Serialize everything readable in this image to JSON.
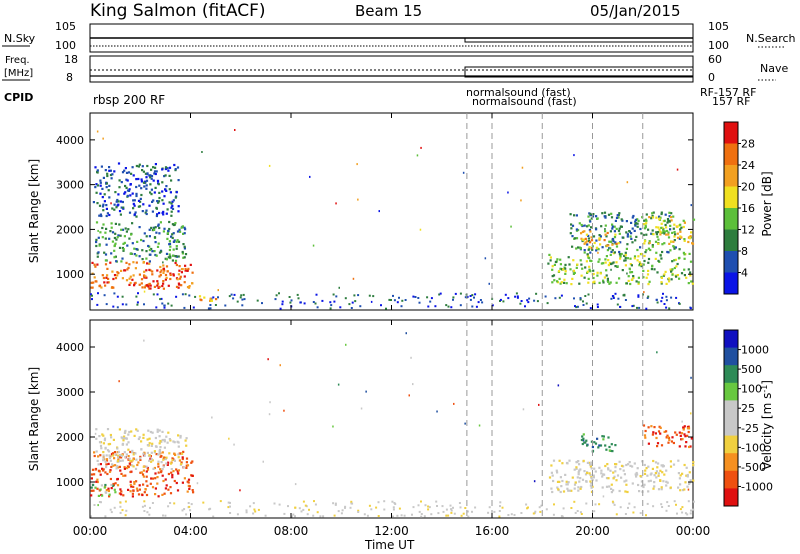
{
  "header": {
    "title": "King Salmon (fitACF)",
    "beam": "Beam 15",
    "date": "05/Jan/2015"
  },
  "nsky_panel": {
    "left_label": "N.Sky",
    "right_label": "N.Search",
    "left_ticks": [
      "10^5",
      "10^0"
    ],
    "right_ticks": [
      "10^5",
      "10^0"
    ]
  },
  "freq_panel": {
    "left_label_line1": "Freq.",
    "left_label_line2": "[MHz]",
    "right_label": "Nave",
    "left_ticks": [
      "18",
      "8"
    ],
    "right_ticks": [
      "60",
      "0"
    ]
  },
  "cpid": {
    "label": "CPID",
    "first": "rbsp 200 RF",
    "overlap_top": "normalsound (fast)",
    "overlap_bottom": "normalsound (fast)",
    "right_top": "RF-157 RF",
    "right_bottom": "157 RF"
  },
  "colors": {
    "power": [
      "#0a14e6",
      "#1f4fb0",
      "#2e7d3e",
      "#5cbf3a",
      "#f0e020",
      "#f2a020",
      "#ef7010",
      "#e01010"
    ],
    "velocity": [
      "#e01010",
      "#ef5010",
      "#f59020",
      "#f0d040",
      "#c8c8c8",
      "#c8c8c8",
      "#68c840",
      "#2e8b57",
      "#2050a0",
      "#1010c0"
    ]
  },
  "chart_data": [
    {
      "type": "heatmap",
      "name": "power_panel",
      "xlabel": "",
      "ylabel": "Slant Range [km]",
      "xlim": [
        "00:00",
        "24:00"
      ],
      "ylim": [
        200,
        4600
      ],
      "y_ticks": [
        1000,
        2000,
        3000,
        4000
      ],
      "colorbar": {
        "label": "Power [dB]",
        "ticks": [
          "4",
          "8",
          "12",
          "16",
          "20",
          "24",
          "28"
        ]
      },
      "regions": [
        {
          "t0": 0.0,
          "t1": 4.1,
          "r0": 700,
          "r1": 1300,
          "level": 6
        },
        {
          "t0": 0.2,
          "t1": 3.8,
          "r0": 1300,
          "r1": 2200,
          "level": 2
        },
        {
          "t0": 0.1,
          "t1": 3.5,
          "r0": 2300,
          "r1": 3500,
          "level": 1
        },
        {
          "t0": 1.5,
          "t1": 3.0,
          "r0": 700,
          "r1": 900,
          "level": 7
        },
        {
          "t0": 4.3,
          "t1": 5.2,
          "r0": 350,
          "r1": 550,
          "level": 5
        },
        {
          "t0": 18.2,
          "t1": 24.0,
          "r0": 800,
          "r1": 1500,
          "level": 3
        },
        {
          "t0": 19.0,
          "t1": 23.5,
          "r0": 1500,
          "r1": 2400,
          "level": 2
        },
        {
          "t0": 22.0,
          "t1": 24.0,
          "r0": 1700,
          "r1": 2300,
          "level": 4
        },
        {
          "t0": 19.5,
          "t1": 21.0,
          "r0": 1600,
          "r1": 2000,
          "level": 5
        }
      ],
      "dashed_lines_hours": [
        15.0,
        16.0,
        18.0,
        20.0,
        22.0
      ]
    },
    {
      "type": "heatmap",
      "name": "velocity_panel",
      "xlabel": "Time UT",
      "ylabel": "Slant Range [km]",
      "xlim": [
        "00:00",
        "24:00"
      ],
      "ylim": [
        200,
        4600
      ],
      "y_ticks": [
        1000,
        2000,
        3000,
        4000
      ],
      "x_ticks": [
        "00:00",
        "04:00",
        "08:00",
        "12:00",
        "16:00",
        "20:00",
        "00:00"
      ],
      "colorbar": {
        "label": "Velocity [m s^-1]",
        "ticks": [
          "1000",
          "500",
          "100",
          "25",
          "-25",
          "-100",
          "-500",
          "-1000"
        ]
      },
      "regions": [
        {
          "t0": 0.0,
          "t1": 4.1,
          "r0": 700,
          "r1": 1700,
          "level": 1
        },
        {
          "t0": 0.2,
          "t1": 3.8,
          "r0": 1300,
          "r1": 2200,
          "level": 4
        },
        {
          "t0": 0.0,
          "t1": 1.0,
          "r0": 700,
          "r1": 1000,
          "level": 6
        },
        {
          "t0": 18.2,
          "t1": 24.0,
          "r0": 800,
          "r1": 1500,
          "level": 4
        },
        {
          "t0": 22.0,
          "t1": 24.0,
          "r0": 1800,
          "r1": 2300,
          "level": 1
        },
        {
          "t0": 19.5,
          "t1": 21.0,
          "r0": 1700,
          "r1": 2100,
          "level": 7
        }
      ],
      "dashed_lines_hours": [
        15.0,
        16.0,
        18.0,
        20.0,
        22.0
      ]
    }
  ]
}
